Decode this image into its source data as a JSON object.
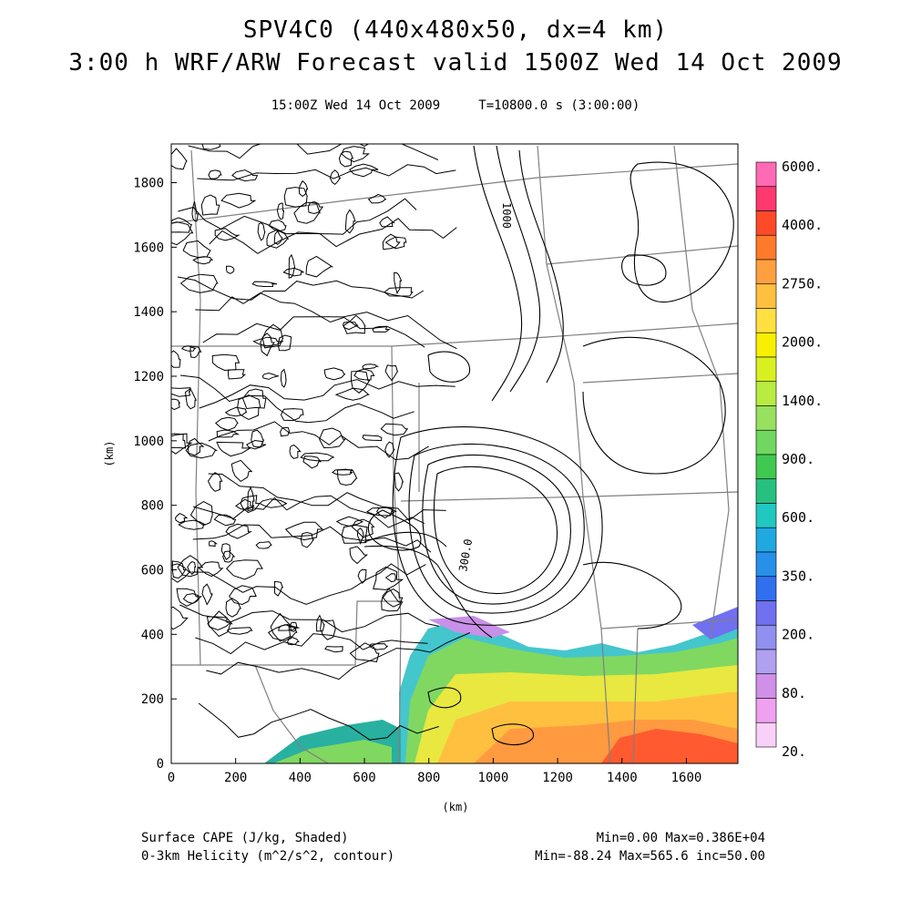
{
  "header": {
    "title_line1": "SPV4C0 (440x480x50, dx=4 km)",
    "title_line2": "3:00 h WRF/ARW Forecast valid 1500Z Wed 14 Oct 2009",
    "valid_time": "15:00Z Wed 14 Oct 2009",
    "elapsed": "T=10800.0 s (3:00:00)"
  },
  "axes": {
    "x_ticks": [
      "0",
      "200",
      "400",
      "600",
      "800",
      "1000",
      "1200",
      "1400",
      "1600"
    ],
    "y_ticks": [
      "0",
      "200",
      "400",
      "600",
      "800",
      "1000",
      "1200",
      "1400",
      "1600",
      "1800"
    ],
    "x_unit": "(km)",
    "y_unit": "(km)",
    "x_max_km": 1760,
    "y_max_km": 1920
  },
  "contour_labels": [
    "1000",
    "300.0"
  ],
  "colorbar": {
    "labels": [
      "6000.",
      "4000.",
      "2750.",
      "2000.",
      "1400.",
      "900.",
      "600.",
      "350.",
      "200.",
      "80.",
      "20."
    ],
    "colors": [
      "#ff6ab4",
      "#ff3870",
      "#ff4a2a",
      "#ff7a2a",
      "#ffa040",
      "#ffc040",
      "#ffe040",
      "#f8f000",
      "#d8f020",
      "#b8ec40",
      "#98e060",
      "#70d860",
      "#40c850",
      "#28c080",
      "#20c8c0",
      "#20a8e0",
      "#2890e8",
      "#3070f0",
      "#7070f0",
      "#9090f0",
      "#b0a0f0",
      "#d090e8",
      "#f0a0f0",
      "#f8d0f8"
    ]
  },
  "footer": {
    "shaded_label": "Surface CAPE (J/kg, Shaded)",
    "contour_label": "0-3km Helicity (m^2/s^2, contour)",
    "shaded_range": "Min=0.00 Max=0.386E+04",
    "contour_range": "Min=-88.24 Max=565.6 inc=50.00"
  }
}
